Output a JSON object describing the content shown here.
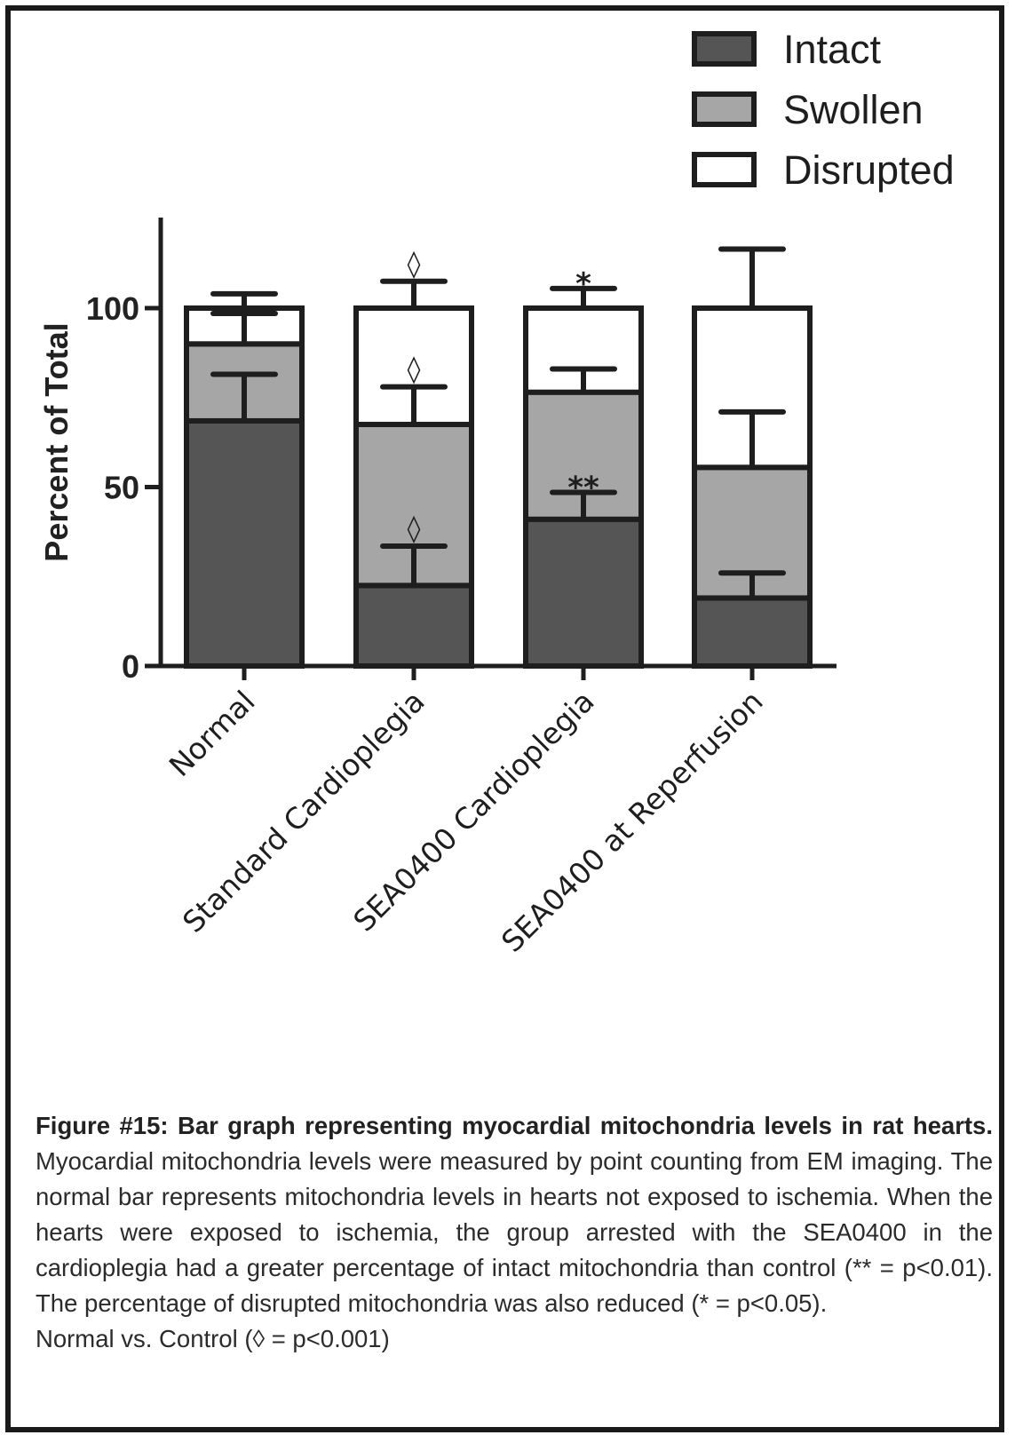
{
  "chart_data": {
    "type": "bar",
    "stacked": true,
    "categories": [
      "Normal",
      "Standard Cardioplegia",
      "SEA0400 Cardioplegia",
      "SEA0400 at Reperfusion"
    ],
    "series": [
      {
        "name": "Intact",
        "color": "#555555",
        "values": [
          68.5,
          22.5,
          41,
          19
        ],
        "error": [
          13,
          11,
          7.5,
          7
        ]
      },
      {
        "name": "Swollen",
        "color": "#a6a6a6",
        "values": [
          21.5,
          45,
          35.5,
          36.5
        ],
        "error": [
          8.5,
          10.5,
          6.5,
          15.5
        ]
      },
      {
        "name": "Disrupted",
        "color": "#ffffff",
        "values": [
          10,
          32.5,
          23.5,
          44.5
        ],
        "error": [
          4,
          7.5,
          5.5,
          16.5
        ]
      }
    ],
    "annotations": [
      {
        "category": 1,
        "position": "above-total",
        "text": "◊"
      },
      {
        "category": 1,
        "position": "above-swollen",
        "text": "◊"
      },
      {
        "category": 1,
        "position": "above-intact",
        "text": "◊"
      },
      {
        "category": 2,
        "position": "above-total",
        "text": "*"
      },
      {
        "category": 2,
        "position": "above-intact",
        "text": "**"
      }
    ],
    "ylabel": "Percent of Total",
    "xlabel": "",
    "ylim": [
      0,
      125
    ],
    "yticks": [
      0,
      50,
      100
    ],
    "legend_position": "top-right",
    "grid": false
  },
  "caption": {
    "title": "Figure #15: Bar graph representing myocardial mitochondria levels in rat hearts.",
    "body": " Myocardial mitochondria levels were measured by point counting from EM imaging. The normal bar represents mitochondria levels in hearts not exposed to ischemia. When the hearts were exposed to ischemia, the group arrested with the SEA0400 in the cardioplegia had a greater percentage of intact mitochondria than control (** = p<0.01). The percentage of disrupted mitochondria was also reduced (* = p<0.05).",
    "last_line": "Normal vs. Control (◊ = p<0.001)"
  }
}
